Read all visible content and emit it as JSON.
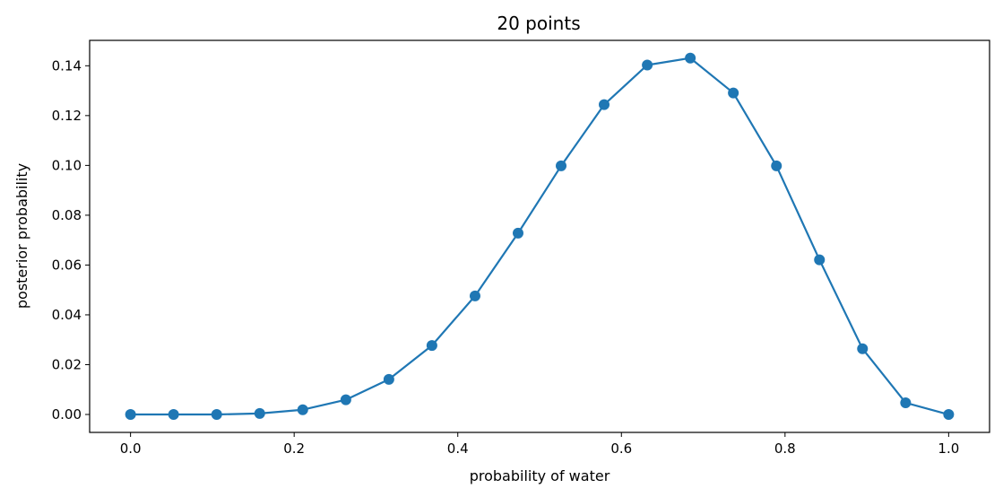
{
  "chart_data": {
    "type": "line",
    "title": "20 points",
    "xlabel": "probability of water",
    "ylabel": "posterior probability",
    "xlim": [
      -0.05,
      1.05
    ],
    "ylim": [
      -0.0072,
      0.1502
    ],
    "xticks": [
      0.0,
      0.2,
      0.4,
      0.6,
      0.8,
      1.0
    ],
    "xtick_labels": [
      "0.0",
      "0.2",
      "0.4",
      "0.6",
      "0.8",
      "1.0"
    ],
    "yticks": [
      0.0,
      0.02,
      0.04,
      0.06,
      0.08,
      0.1,
      0.12,
      0.14
    ],
    "ytick_labels": [
      "0.00",
      "0.02",
      "0.04",
      "0.06",
      "0.08",
      "0.10",
      "0.12",
      "0.14"
    ],
    "grid": false,
    "series": [
      {
        "color": "#1f77b4",
        "marker": "circle",
        "x": [
          0.0,
          0.0526,
          0.1053,
          0.1579,
          0.2105,
          0.2632,
          0.3158,
          0.3684,
          0.4211,
          0.4737,
          0.5263,
          0.5789,
          0.6316,
          0.6842,
          0.7368,
          0.7895,
          0.8421,
          0.8947,
          0.9474,
          1.0
        ],
        "y": [
          0.0,
          0.0,
          0.0,
          0.0004,
          0.0019,
          0.0059,
          0.0141,
          0.0277,
          0.0476,
          0.0728,
          0.0998,
          0.1244,
          0.1403,
          0.1431,
          0.1291,
          0.0998,
          0.0621,
          0.0264,
          0.0047,
          0.0
        ]
      }
    ]
  }
}
